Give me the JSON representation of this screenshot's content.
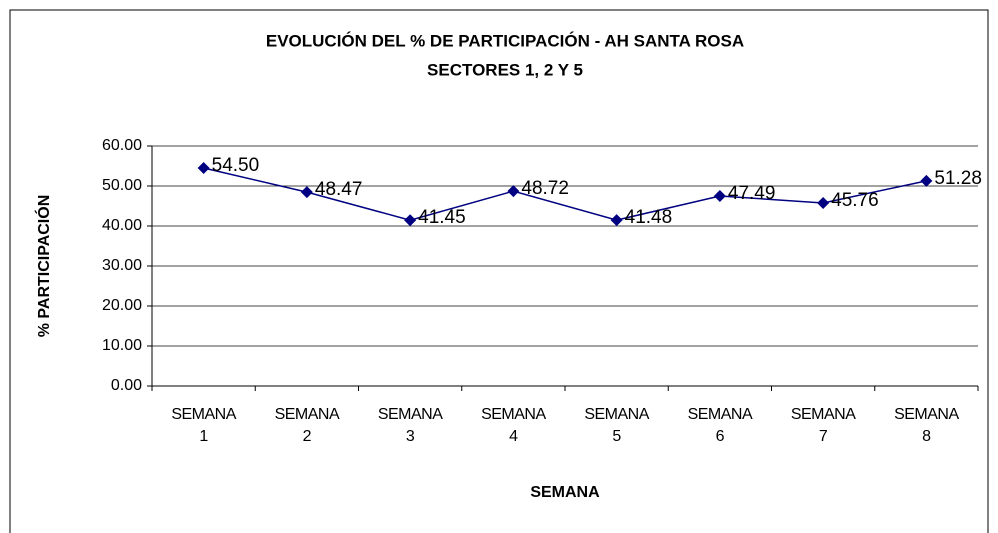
{
  "chart_data": {
    "type": "line",
    "title": "EVOLUCIÓN DEL % DE PARTICIPACIÓN - AH SANTA ROSA",
    "subtitle": "SECTORES 1, 2 Y 5",
    "x_label": "SEMANA",
    "y_label": "% PARTICIPACIÓN",
    "categories": [
      "SEMANA 1",
      "SEMANA 2",
      "SEMANA 3",
      "SEMANA 4",
      "SEMANA 5",
      "SEMANA 6",
      "SEMANA 7",
      "SEMANA 8"
    ],
    "series": [
      {
        "color": "#000080",
        "values": [
          54.5,
          48.47,
          41.45,
          48.72,
          41.48,
          47.49,
          45.76,
          51.28
        ],
        "value_labels": [
          "54.50",
          "48.47",
          "41.45",
          "48.72",
          "41.48",
          "47.49",
          "45.76",
          "51.28"
        ]
      }
    ],
    "ylim": [
      0,
      60
    ],
    "yticks": [
      {
        "value": 0,
        "label": "0.00"
      },
      {
        "value": 10,
        "label": "10.00"
      },
      {
        "value": 20,
        "label": "20.00"
      },
      {
        "value": 30,
        "label": "30.00"
      },
      {
        "value": 40,
        "label": "40.00"
      },
      {
        "value": 50,
        "label": "50.00"
      },
      {
        "value": 60,
        "label": "60.00"
      }
    ],
    "grid": true
  }
}
